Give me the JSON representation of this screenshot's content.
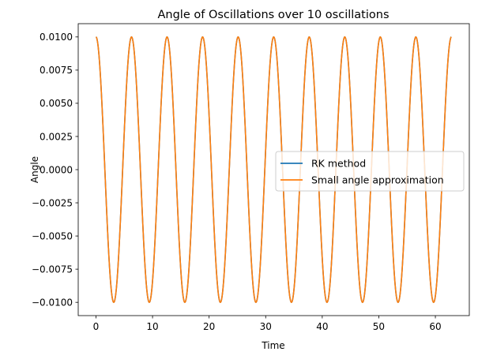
{
  "chart_data": {
    "type": "line",
    "title": "Angle of Oscillations over 10 oscillations",
    "xlabel": "Time",
    "ylabel": "Angle",
    "xlim": [
      -3.14,
      66.0
    ],
    "ylim": [
      -0.011,
      0.011
    ],
    "x_ticks": [
      0,
      10,
      20,
      30,
      40,
      50,
      60
    ],
    "x_tick_labels": [
      "0",
      "10",
      "20",
      "30",
      "40",
      "50",
      "60"
    ],
    "y_ticks": [
      0.01,
      0.0075,
      0.005,
      0.0025,
      0.0,
      -0.0025,
      -0.005,
      -0.0075,
      -0.01
    ],
    "y_tick_labels": [
      "0.0100",
      "0.0075",
      "0.0050",
      "0.0025",
      "0.0000",
      "−0.0025",
      "−0.0050",
      "−0.0075",
      "−0.0100"
    ],
    "grid": false,
    "legend_position": "center-right",
    "series": [
      {
        "name": "RK method",
        "color": "#1f77b4",
        "function": "0.01*cos(t)",
        "t_range": [
          0,
          62.83
        ],
        "samples": 1200
      },
      {
        "name": "Small angle approximation",
        "color": "#ff7f0e",
        "function": "0.01*cos(t)",
        "t_range": [
          0,
          62.83
        ],
        "samples": 1200
      }
    ]
  }
}
